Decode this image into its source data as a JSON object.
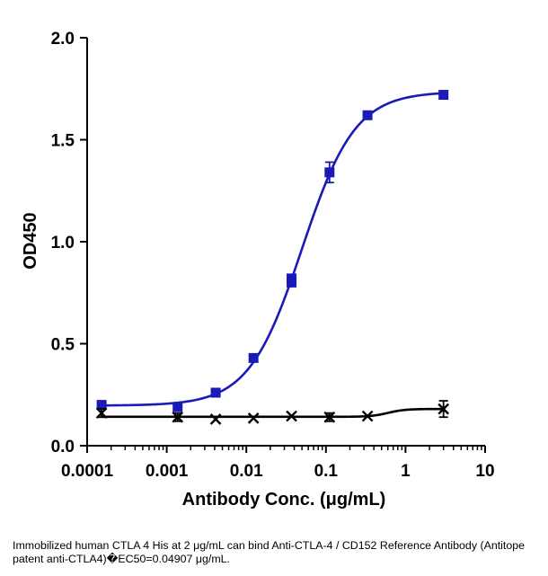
{
  "chart_data": {
    "type": "scatter",
    "xlabel": "Antibody Conc. (μg/mL)",
    "ylabel": "OD450",
    "x_scale": "log",
    "xlim": [
      0.0001,
      10
    ],
    "ylim": [
      0,
      2.0
    ],
    "x_tick_labels": [
      "0.0001",
      "0.001",
      "0.01",
      "0.1",
      "1",
      "10"
    ],
    "x_tick_values": [
      0.0001,
      0.001,
      0.01,
      0.1,
      1,
      10
    ],
    "y_tick_labels": [
      "0.0",
      "0.5",
      "1.0",
      "1.5",
      "2.0"
    ],
    "y_tick_values": [
      0,
      0.5,
      1.0,
      1.5,
      2.0
    ],
    "grid": false,
    "series": [
      {
        "color": "#1a1ab8",
        "marker": "square",
        "fit": "sigmoid",
        "x": [
          0.000152,
          0.00137,
          0.00412,
          0.0123,
          0.037,
          0.037,
          0.111,
          0.333,
          3.0
        ],
        "y": [
          0.2,
          0.19,
          0.26,
          0.43,
          0.8,
          0.82,
          1.34,
          1.62,
          1.72
        ],
        "error": [
          0,
          0,
          0,
          0,
          0,
          0,
          0.05,
          0,
          0
        ]
      },
      {
        "color": "#000000",
        "marker": "cross",
        "fit": "sigmoid",
        "x": [
          0.000152,
          0.00137,
          0.00412,
          0.0123,
          0.037,
          0.111,
          0.333,
          3.0
        ],
        "y": [
          0.16,
          0.14,
          0.13,
          0.135,
          0.145,
          0.14,
          0.145,
          0.18
        ],
        "error": [
          0.02,
          0.02,
          0,
          0,
          0,
          0.02,
          0,
          0.04
        ]
      }
    ]
  },
  "caption": "Immobilized human CTLA 4 His at 2 μg/mL can bind  Anti-CTLA-4 / CD152  Reference Antibody (Antitope patent anti-CTLA4)�EC50=0.04907 μg/mL."
}
